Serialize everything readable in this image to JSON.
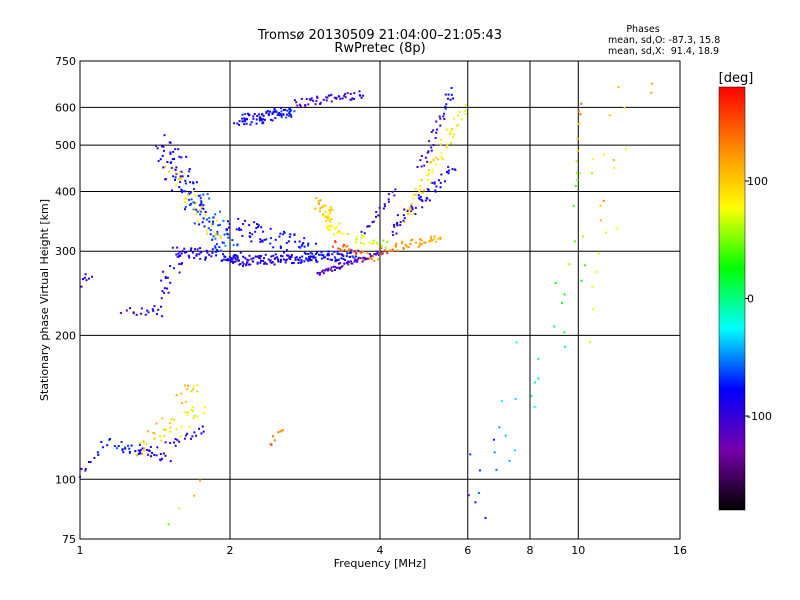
{
  "chart_data": {
    "type": "scatter",
    "title": "Tromsø 20130509 21:04:00–21:05:43",
    "subtitle": "RwPretec (8p)",
    "xlabel": "Frequency [MHz]",
    "ylabel": "Stationary phase Virtual Height [km]",
    "x_scale": "log",
    "y_scale": "log",
    "xlim": [
      1,
      16
    ],
    "ylim": [
      75,
      750
    ],
    "x_ticks": [
      1,
      2,
      4,
      6,
      8,
      10,
      16
    ],
    "x_tick_labels": [
      "1",
      "2",
      "4",
      "6",
      "8",
      "10",
      "16"
    ],
    "y_ticks": [
      75,
      100,
      200,
      300,
      400,
      500,
      600,
      750
    ],
    "y_tick_labels": [
      "75",
      "100",
      "200",
      "300",
      "400",
      "500",
      "600",
      "750"
    ],
    "grid": true,
    "stats": {
      "heading": "Phases",
      "o_line": "mean, sd,O: -87.3, 15.8",
      "x_line": "mean, sd,X:  91.4, 18.9"
    },
    "colorbar": {
      "label": "[deg]",
      "range": [
        -180,
        180
      ],
      "ticks": [
        100,
        0,
        -100
      ],
      "tick_labels": [
        "100",
        "0",
        "-100"
      ],
      "colors": [
        "#ff0000",
        "#ff8800",
        "#ffff00",
        "#00ff00",
        "#00ffff",
        "#0000ff",
        "#7700aa",
        "#000000"
      ]
    },
    "traces": [
      {
        "f": [
          1.0,
          1.15
        ],
        "h": [
          103,
          122
        ],
        "phase": [
          -95,
          -80
        ],
        "spread": [
          0.01,
          0.02
        ],
        "n": 14
      },
      {
        "f": [
          1.18,
          1.5
        ],
        "h": [
          118,
          112
        ],
        "phase": [
          -70,
          -95
        ],
        "spread": [
          0.02,
          0.03
        ],
        "n": 40
      },
      {
        "f": [
          1.3,
          1.75
        ],
        "h": [
          118,
          138
        ],
        "phase": [
          110,
          70
        ],
        "spread": [
          0.02,
          0.06
        ],
        "n": 40
      },
      {
        "f": [
          1.5,
          1.78
        ],
        "h": [
          118,
          128
        ],
        "phase": [
          -100,
          -90
        ],
        "spread": [
          0.01,
          0.02
        ],
        "n": 18
      },
      {
        "f": [
          1.55,
          1.75
        ],
        "h": [
          145,
          158
        ],
        "phase": [
          120,
          90
        ],
        "spread": [
          0.02,
          0.04
        ],
        "n": 12
      },
      {
        "f": [
          2.4,
          2.55
        ],
        "h": [
          118,
          128
        ],
        "phase": [
          140,
          120
        ],
        "spread": [
          0.01,
          0.02
        ],
        "n": 8
      },
      {
        "f": [
          1.0,
          1.05
        ],
        "h": [
          258,
          268
        ],
        "phase": [
          -100,
          -90
        ],
        "spread": [
          0.01,
          0.02
        ],
        "n": 8
      },
      {
        "f": [
          1.22,
          1.45
        ],
        "h": [
          225,
          222
        ],
        "phase": [
          -110,
          -90
        ],
        "spread": [
          0.01,
          0.02
        ],
        "n": 14
      },
      {
        "f": [
          1.4,
          1.6
        ],
        "h": [
          230,
          300
        ],
        "phase": [
          -95,
          -80
        ],
        "spread": [
          0.03,
          0.04
        ],
        "n": 25
      },
      {
        "f": [
          1.45,
          2.0
        ],
        "h": [
          500,
          300
        ],
        "phase": [
          -90,
          -60
        ],
        "spread": [
          0.05,
          0.07
        ],
        "n": 130
      },
      {
        "f": [
          1.5,
          1.9
        ],
        "h": [
          450,
          320
        ],
        "phase": [
          100,
          80
        ],
        "spread": [
          0.03,
          0.05
        ],
        "n": 30
      },
      {
        "f": [
          1.55,
          2.1
        ],
        "h": [
          300,
          290
        ],
        "phase": [
          -95,
          -80
        ],
        "spread": [
          0.015,
          0.03
        ],
        "n": 60
      },
      {
        "f": [
          2.0,
          3.6
        ],
        "h": [
          285,
          295
        ],
        "phase": [
          -95,
          -80
        ],
        "spread": [
          0.015,
          0.025
        ],
        "n": 170
      },
      {
        "f": [
          2.0,
          3.0
        ],
        "h": [
          340,
          300
        ],
        "phase": [
          -90,
          -70
        ],
        "spread": [
          0.04,
          0.05
        ],
        "n": 70
      },
      {
        "f": [
          2.1,
          2.7
        ],
        "h": [
          560,
          590
        ],
        "phase": [
          -85,
          -70
        ],
        "spread": [
          0.03,
          0.03
        ],
        "n": 90
      },
      {
        "f": [
          2.7,
          3.7
        ],
        "h": [
          610,
          640
        ],
        "phase": [
          -110,
          -95
        ],
        "spread": [
          0.01,
          0.02
        ],
        "n": 50
      },
      {
        "f": [
          3.0,
          3.3
        ],
        "h": [
          380,
          330
        ],
        "phase": [
          110,
          80
        ],
        "spread": [
          0.03,
          0.03
        ],
        "n": 50
      },
      {
        "f": [
          3.0,
          4.1
        ],
        "h": [
          270,
          300
        ],
        "phase": [
          -115,
          -105
        ],
        "spread": [
          0.01,
          0.012
        ],
        "n": 70
      },
      {
        "f": [
          3.2,
          3.9
        ],
        "h": [
          310,
          290
        ],
        "phase": [
          150,
          130
        ],
        "spread": [
          0.02,
          0.02
        ],
        "n": 30
      },
      {
        "f": [
          3.5,
          4.1
        ],
        "h": [
          320,
          310
        ],
        "phase": [
          70,
          60
        ],
        "spread": [
          0.02,
          0.02
        ],
        "n": 20
      },
      {
        "f": [
          4.0,
          5.3
        ],
        "h": [
          300,
          320
        ],
        "phase": [
          140,
          110
        ],
        "spread": [
          0.015,
          0.02
        ],
        "n": 45
      },
      {
        "f": [
          4.2,
          5.6
        ],
        "h": [
          330,
          450
        ],
        "phase": [
          -95,
          -85
        ],
        "spread": [
          0.02,
          0.03
        ],
        "n": 55
      },
      {
        "f": [
          4.5,
          5.9
        ],
        "h": [
          350,
          600
        ],
        "phase": [
          100,
          80
        ],
        "spread": [
          0.015,
          0.03
        ],
        "n": 60
      },
      {
        "f": [
          4.8,
          5.6
        ],
        "h": [
          450,
          650
        ],
        "phase": [
          -100,
          -85
        ],
        "spread": [
          0.015,
          0.03
        ],
        "n": 35
      },
      {
        "f": [
          3.7,
          4.3
        ],
        "h": [
          330,
          400
        ],
        "phase": [
          -100,
          -90
        ],
        "spread": [
          0.01,
          0.02
        ],
        "n": 20
      },
      {
        "f": [
          6.0,
          13.5
        ],
        "h": [
          80,
          650
        ],
        "phase": [
          -90,
          120
        ],
        "spread": [
          0.08,
          0.2
        ],
        "n": 50
      },
      {
        "f": [
          9.9,
          10.1
        ],
        "h": [
          420,
          640
        ],
        "phase": [
          40,
          150
        ],
        "spread": [
          0.005,
          0.06
        ],
        "n": 10
      },
      {
        "f": [
          10.6,
          11.2
        ],
        "h": [
          200,
          400
        ],
        "phase": [
          60,
          120
        ],
        "spread": [
          0.01,
          0.06
        ],
        "n": 8
      },
      {
        "f": [
          1.5,
          1.75
        ],
        "h": [
          80,
          98
        ],
        "phase": [
          60,
          110
        ],
        "spread": [
          0.02,
          0.02
        ],
        "n": 4
      }
    ]
  }
}
